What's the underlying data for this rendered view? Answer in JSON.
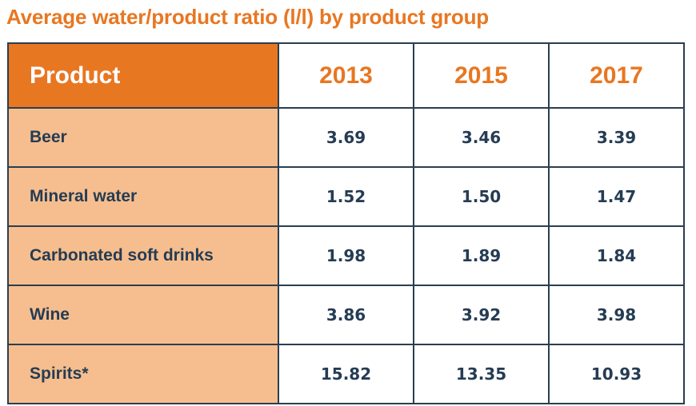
{
  "chart_data": {
    "type": "table",
    "title": "Average water/product ratio (l/l) by product group",
    "columns": [
      "Product",
      "2013",
      "2015",
      "2017"
    ],
    "rows": [
      {
        "product": "Beer",
        "values": [
          "3.69",
          "3.46",
          "3.39"
        ]
      },
      {
        "product": "Mineral water",
        "values": [
          "1.52",
          "1.50",
          "1.47"
        ]
      },
      {
        "product": "Carbonated soft drinks",
        "values": [
          "1.98",
          "1.89",
          "1.84"
        ]
      },
      {
        "product": "Wine",
        "values": [
          "3.86",
          "3.92",
          "3.98"
        ]
      },
      {
        "product": "Spirits*",
        "values": [
          "15.82",
          "13.35",
          "10.93"
        ]
      }
    ]
  },
  "colors": {
    "accent": "#e87722",
    "product_cell": "#f6be8e",
    "text": "#253c54",
    "border": "#2b3e4f"
  }
}
